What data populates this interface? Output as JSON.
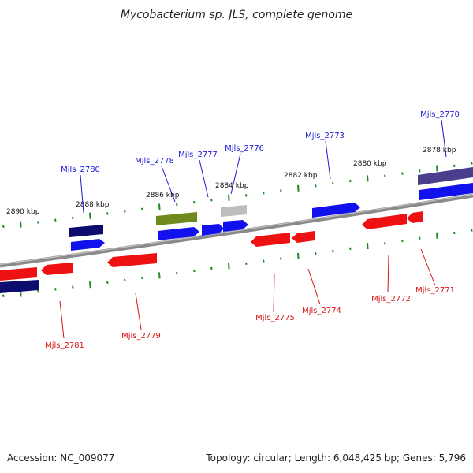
{
  "title": "Mycobacterium sp. JLS, complete genome",
  "footer": {
    "accession": "Accession: NC_009077",
    "summary": "Topology: circular; Length: 6,048,425 bp; Genes: 5,796"
  },
  "colors": {
    "backbone": "#8a8a8a",
    "tick": "#1f8a1f",
    "forward_gene": "#1111ee",
    "reverse_gene": "#ee1111",
    "forward_label": "#1a1ad8",
    "reverse_label": "#d81414",
    "ncrna_dark": "#0c0c6e",
    "ncrna_purple": "#4a3f8c",
    "rrna_green": "#6e8a1e",
    "pseudo_gray": "#bdbdbd"
  },
  "kbp_labels": [
    "2890 kbp",
    "2888 kbp",
    "2886 kbp",
    "2884 kbp",
    "2882 kbp",
    "2880 kbp",
    "2878 kbp"
  ],
  "genes_top": [
    "Mjls_2780",
    "Mjls_2778",
    "Mjls_2777",
    "Mjls_2776",
    "Mjls_2773",
    "Mjls_2770"
  ],
  "genes_bottom": [
    "Mjls_2781",
    "Mjls_2779",
    "Mjls_2775",
    "Mjls_2774",
    "Mjls_2772",
    "Mjls_2771"
  ]
}
